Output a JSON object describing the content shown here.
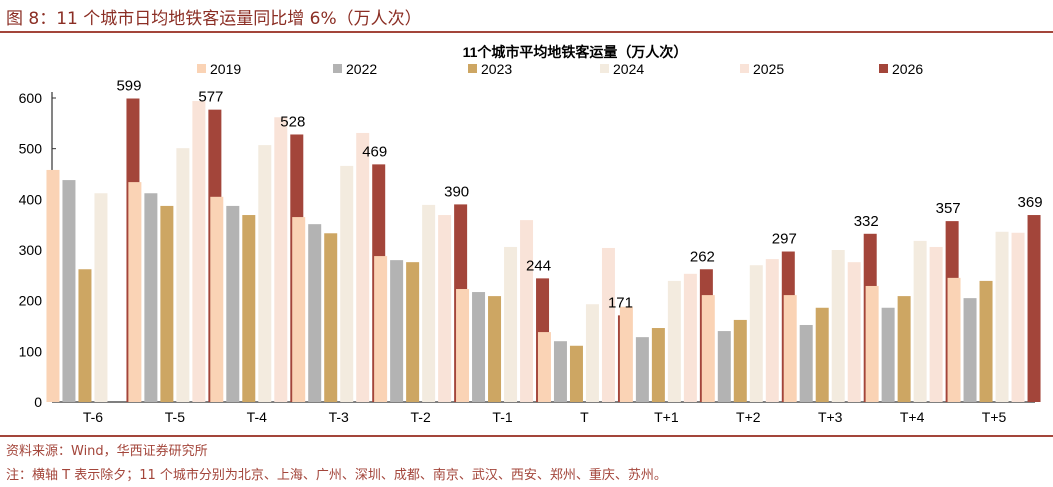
{
  "header": {
    "figure_title": "图 8：11 个城市日均地铁客运量同比增 6%（万人次）"
  },
  "footer": {
    "source": "资料来源：Wind，华西证券研究所",
    "note": "注：横轴 T 表示除夕；11 个城市分别为北京、上海、广州、深圳、成都、南京、武汉、西安、郑州、重庆、苏州。"
  },
  "chart_data": {
    "type": "bar",
    "title": "11个城市平均地铁客运量（万人次）",
    "xlabel": "",
    "ylabel": "",
    "ylim": [
      0,
      600
    ],
    "yticks": [
      "0",
      "100",
      "200",
      "300",
      "400",
      "500",
      "600"
    ],
    "grid": false,
    "legend_position": "top",
    "categories": [
      "T-6",
      "T-5",
      "T-4",
      "T-3",
      "T-2",
      "T-1",
      "T",
      "T+1",
      "T+2",
      "T+3",
      "T+4",
      "T+5"
    ],
    "series": [
      {
        "name": "2019",
        "color": "#FAD3B5",
        "values": [
          458,
          434,
          405,
          365,
          288,
          223,
          138,
          188,
          211,
          211,
          229,
          245
        ]
      },
      {
        "name": "2022",
        "color": "#B3B3B3",
        "values": [
          438,
          412,
          387,
          351,
          280,
          217,
          120,
          128,
          140,
          152,
          186,
          205
        ]
      },
      {
        "name": "2023",
        "color": "#CDA663",
        "values": [
          262,
          387,
          369,
          333,
          276,
          209,
          111,
          146,
          162,
          186,
          209,
          239
        ]
      },
      {
        "name": "2024",
        "color": "#F3EBDF",
        "values": [
          412,
          501,
          507,
          466,
          389,
          306,
          193,
          239,
          270,
          300,
          318,
          336
        ]
      },
      {
        "name": "2025",
        "color": "#F9E3D8",
        "values": [
          null,
          594,
          562,
          531,
          369,
          359,
          304,
          253,
          282,
          276,
          306,
          334
        ]
      },
      {
        "name": "2026",
        "color": "#A3453A",
        "values": [
          599,
          577,
          528,
          469,
          390,
          244,
          171,
          262,
          297,
          332,
          357,
          369
        ]
      }
    ],
    "data_labels": {
      "series": "2026",
      "labels": [
        "599",
        "577",
        "528",
        "469",
        "390",
        "244",
        "171",
        "262",
        "297",
        "332",
        "357",
        "369"
      ]
    }
  }
}
